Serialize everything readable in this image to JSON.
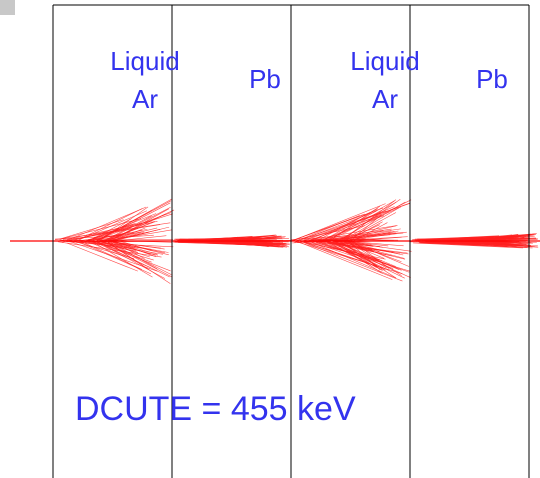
{
  "layers": [
    {
      "lines": [
        "Liquid",
        "Ar"
      ]
    },
    {
      "lines": [
        "Pb"
      ]
    },
    {
      "lines": [
        "Liquid",
        "Ar"
      ]
    },
    {
      "lines": [
        "Pb"
      ]
    }
  ],
  "annotation": "DCUTE = 455 keV"
}
